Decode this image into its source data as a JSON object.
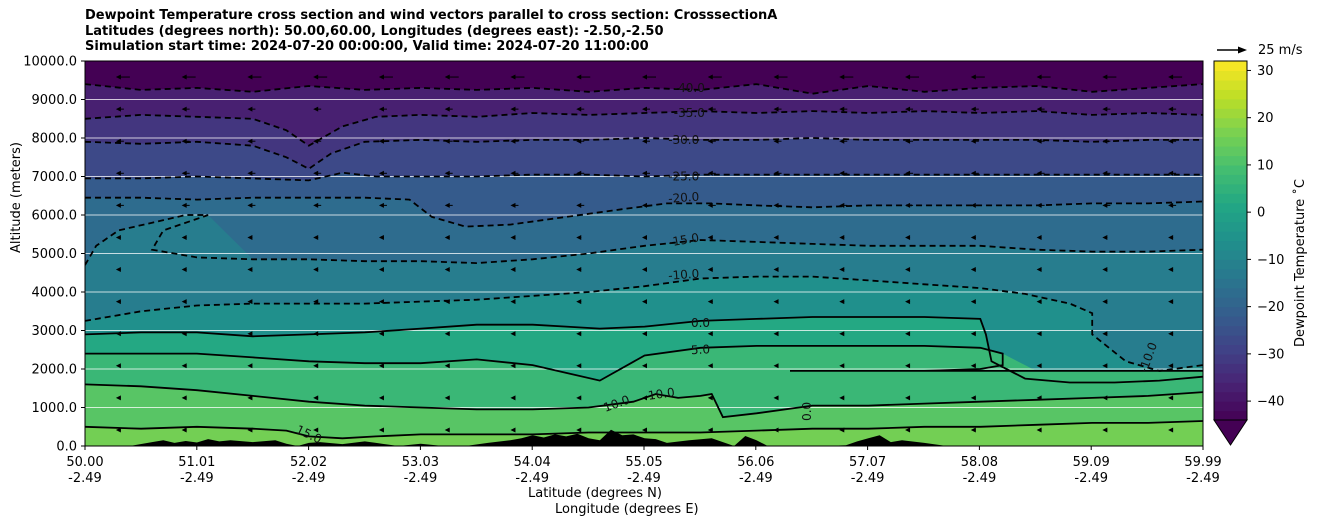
{
  "title": {
    "line1": "Dewpoint Temperature cross section and wind vectors parallel to cross section: CrosssectionA",
    "line2": "Latitudes (degrees north): 50.00,60.00, Longitudes (degrees east): -2.50,-2.50",
    "line3": "Simulation start time: 2024-07-20 00:00:00, Valid time: 2024-07-20 11:00:00"
  },
  "chart_data": {
    "type": "heatmap",
    "subtype": "filled-contour cross section with contour lines, wind vectors and terrain",
    "x_ticks": [
      {
        "lat": "50.00",
        "lon": "-2.49"
      },
      {
        "lat": "51.01",
        "lon": "-2.49"
      },
      {
        "lat": "52.02",
        "lon": "-2.49"
      },
      {
        "lat": "53.03",
        "lon": "-2.49"
      },
      {
        "lat": "54.04",
        "lon": "-2.49"
      },
      {
        "lat": "55.05",
        "lon": "-2.49"
      },
      {
        "lat": "56.06",
        "lon": "-2.49"
      },
      {
        "lat": "57.07",
        "lon": "-2.49"
      },
      {
        "lat": "58.08",
        "lon": "-2.49"
      },
      {
        "lat": "59.09",
        "lon": "-2.49"
      },
      {
        "lat": "59.99",
        "lon": "-2.49"
      }
    ],
    "xlim": [
      50.0,
      59.99
    ],
    "xlabel_line1": "Latitude (degrees N)",
    "xlabel_line2": "Longitude (degrees E)",
    "ylabel": "Altitude (meters)",
    "ylim": [
      0,
      10000
    ],
    "y_ticks": [
      "0.0",
      "1000.0",
      "2000.0",
      "3000.0",
      "4000.0",
      "5000.0",
      "6000.0",
      "7000.0",
      "8000.0",
      "9000.0",
      "10000.0"
    ],
    "grid": "horizontal lines at y ticks",
    "colorbar": {
      "label": "Dewpoint Temperature $^\\circ$C",
      "label_display": "Dewpoint Temperature ˚C",
      "ticks": [
        "30",
        "20",
        "10",
        "0",
        "−10",
        "−20",
        "−30",
        "−40"
      ],
      "range": [
        -44,
        32
      ],
      "extend": "min",
      "colormap": "viridis"
    },
    "quiver_key": {
      "label": "25 m/s",
      "value": 25
    },
    "contour_labels": [
      {
        "text": "-40.0",
        "value": -40,
        "altitude": 9300
      },
      {
        "text": "-35.0",
        "value": -35,
        "altitude": 8650
      },
      {
        "text": "-30.0",
        "value": -30,
        "altitude": 7950
      },
      {
        "text": "-25.0",
        "value": -25,
        "altitude": 7000
      },
      {
        "text": "-20.0",
        "value": -20,
        "altitude": 6450
      },
      {
        "text": "-15.0",
        "value": -15,
        "altitude": 5350
      },
      {
        "text": "-10.0",
        "value": -10,
        "altitude": 4450
      },
      {
        "text": "0.0",
        "value": 0,
        "altitude": 3200
      },
      {
        "text": "5.0",
        "value": 5,
        "altitude": 2500
      },
      {
        "text": "10.0",
        "value": 10,
        "altitude": 1350
      },
      {
        "text": "10.0",
        "value": 10,
        "altitude": 1100
      },
      {
        "text": "15.0",
        "value": 15,
        "altitude": 300
      },
      {
        "text": "0.0",
        "value": 0,
        "altitude": 900
      },
      {
        "text": "-10.0",
        "value": -10,
        "altitude": 2300
      }
    ],
    "contour_lines": [
      {
        "value": -40,
        "style": "dashed",
        "lat": [
          50.0,
          50.5,
          51.0,
          51.5,
          52.0,
          52.5,
          53.0,
          53.5,
          54.0,
          54.5,
          55.0,
          55.5,
          56.0,
          56.5,
          57.0,
          57.5,
          58.0,
          58.5,
          59.0,
          59.5,
          59.99
        ],
        "alt": [
          9400,
          9250,
          9300,
          9200,
          9350,
          9250,
          9300,
          9250,
          9300,
          9200,
          9300,
          9250,
          9400,
          9150,
          9350,
          9200,
          9300,
          9350,
          9200,
          9300,
          9400
        ]
      },
      {
        "value": -35,
        "style": "dashed",
        "lat": [
          50.0,
          50.5,
          51.0,
          51.5,
          51.8,
          52.0,
          52.3,
          52.6,
          53.0,
          53.5,
          54.0,
          54.5,
          55.0,
          55.5,
          56.0,
          56.5,
          57.0,
          57.5,
          58.0,
          58.5,
          59.0,
          59.5,
          59.99
        ],
        "alt": [
          8500,
          8600,
          8550,
          8500,
          8200,
          7800,
          8300,
          8550,
          8600,
          8550,
          8650,
          8600,
          8650,
          8700,
          8650,
          8700,
          8650,
          8700,
          8650,
          8700,
          8600,
          8650,
          8600
        ]
      },
      {
        "value": -30,
        "style": "dashed",
        "lat": [
          50.0,
          50.5,
          51.0,
          51.5,
          51.8,
          52.0,
          52.2,
          52.5,
          53.0,
          53.5,
          54.0,
          54.5,
          55.0,
          55.5,
          56.0,
          56.5,
          57.0,
          57.5,
          58.0,
          58.5,
          59.0,
          59.5,
          59.99
        ],
        "alt": [
          7900,
          7850,
          7900,
          7800,
          7500,
          7200,
          7600,
          7900,
          7950,
          7900,
          7950,
          7950,
          8000,
          7950,
          7950,
          8000,
          7950,
          7950,
          7950,
          7950,
          7900,
          7950,
          7950
        ]
      },
      {
        "value": -25,
        "style": "dashed",
        "lat": [
          50.0,
          50.5,
          51.0,
          51.5,
          52.0,
          52.3,
          52.6,
          53.0,
          53.5,
          54.0,
          54.5,
          55.0,
          55.5,
          56.0,
          56.5,
          57.0,
          57.5,
          58.0,
          58.5,
          59.0,
          59.5,
          59.99
        ],
        "alt": [
          6950,
          6950,
          7000,
          6950,
          6900,
          7100,
          7000,
          7000,
          7000,
          7050,
          7050,
          7000,
          7050,
          7050,
          7050,
          7050,
          7050,
          7050,
          7050,
          7050,
          7050,
          7050
        ]
      },
      {
        "value": -20,
        "style": "dashed",
        "lat": [
          50.0,
          50.5,
          51.0,
          51.5,
          52.0,
          52.5,
          52.9,
          53.1,
          53.4,
          53.8,
          54.3,
          54.8,
          55.2,
          55.6,
          56.0,
          56.5,
          57.0,
          57.5,
          58.0,
          58.5,
          59.0,
          59.5,
          59.99
        ],
        "alt": [
          6450,
          6450,
          6400,
          6450,
          6450,
          6450,
          6400,
          5950,
          5700,
          5750,
          5950,
          6150,
          6300,
          6300,
          6250,
          6200,
          6250,
          6250,
          6250,
          6250,
          6300,
          6300,
          6350
        ]
      },
      {
        "value": -15,
        "style": "dashed",
        "lat": [
          50.0,
          50.1,
          50.3,
          50.6,
          50.9,
          51.1,
          51.0,
          50.7,
          50.6,
          51.0,
          51.5,
          52.0,
          52.5,
          53.0,
          53.5,
          54.0,
          54.5,
          55.0,
          55.5,
          56.0,
          56.5,
          57.0,
          57.5,
          58.0,
          58.5,
          59.0,
          59.5,
          59.99
        ],
        "alt": [
          4700,
          5200,
          5600,
          5800,
          6000,
          6000,
          5900,
          5600,
          5100,
          4900,
          4850,
          4850,
          4800,
          4800,
          4750,
          4850,
          5000,
          5200,
          5350,
          5300,
          5250,
          5200,
          5200,
          5200,
          5100,
          5050,
          5050,
          5100
        ]
      },
      {
        "value": -10,
        "style": "dashed",
        "lat": [
          50.0,
          50.5,
          51.0,
          51.5,
          52.0,
          52.5,
          53.0,
          53.5,
          54.0,
          54.5,
          55.0,
          55.5,
          56.0,
          56.5,
          57.0,
          57.5,
          58.0,
          58.4,
          58.8,
          59.0,
          59.0,
          59.3,
          59.6,
          59.99
        ],
        "alt": [
          3250,
          3500,
          3650,
          3700,
          3700,
          3700,
          3750,
          3800,
          3900,
          4000,
          4150,
          4350,
          4400,
          4400,
          4300,
          4200,
          4100,
          3950,
          3700,
          3450,
          2900,
          2200,
          1950,
          2100
        ]
      },
      {
        "value": 0,
        "style": "solid",
        "lat": [
          50.0,
          50.5,
          51.0,
          51.5,
          52.0,
          52.5,
          53.0,
          53.5,
          54.0,
          54.3,
          54.6,
          55.0,
          55.5,
          56.0,
          56.5,
          57.0,
          57.5,
          58.0,
          58.05,
          58.1,
          58.4,
          58.8,
          59.2,
          59.6,
          59.99
        ],
        "alt": [
          2900,
          2950,
          2950,
          2850,
          2900,
          2950,
          3050,
          3150,
          3150,
          3100,
          3050,
          3100,
          3250,
          3300,
          3350,
          3350,
          3350,
          3300,
          2900,
          2200,
          1750,
          1650,
          1650,
          1700,
          1800
        ]
      },
      {
        "value": 5,
        "style": "solid",
        "lat": [
          50.0,
          50.5,
          51.0,
          51.5,
          52.0,
          52.5,
          53.0,
          53.5,
          54.0,
          54.3,
          54.6,
          55.0,
          55.5,
          56.0,
          56.5,
          57.0,
          57.5,
          58.0,
          58.2,
          58.2,
          58.0,
          57.5,
          57.0,
          56.5,
          56.3,
          56.3,
          56.6,
          57.0,
          57.5,
          58.0,
          58.5,
          59.0,
          59.5,
          59.99
        ],
        "alt": [
          2400,
          2400,
          2400,
          2300,
          2200,
          2150,
          2150,
          2250,
          2100,
          1900,
          1700,
          2350,
          2550,
          2600,
          2600,
          2600,
          2600,
          2550,
          2400,
          2100,
          2000,
          1950,
          1950,
          1950,
          1950,
          1950,
          1950,
          1950,
          1950,
          1950,
          1950,
          1950,
          1950,
          1950
        ]
      },
      {
        "value": 10,
        "style": "solid",
        "lat": [
          50.0,
          50.5,
          51.0,
          51.5,
          52.0,
          52.5,
          53.0,
          53.5,
          54.0,
          54.5,
          54.9,
          55.1,
          55.3,
          55.5,
          55.6,
          55.7,
          56.0,
          56.5,
          57.0,
          57.5,
          58.0,
          58.5,
          59.0,
          59.5,
          59.99
        ],
        "alt": [
          1600,
          1550,
          1450,
          1300,
          1150,
          1050,
          1000,
          950,
          950,
          1000,
          1150,
          1350,
          1250,
          1300,
          1350,
          750,
          850,
          1050,
          1050,
          1100,
          1150,
          1200,
          1250,
          1300,
          1400
        ]
      },
      {
        "value": 15,
        "style": "solid",
        "lat": [
          50.0,
          50.5,
          51.0,
          51.5,
          51.8,
          52.0,
          52.3,
          52.6,
          53.0,
          53.5,
          54.0,
          54.5,
          55.0,
          55.5,
          56.0,
          56.5,
          57.0,
          57.5,
          58.0,
          58.5,
          59.0,
          59.5,
          59.99
        ],
        "alt": [
          500,
          450,
          500,
          450,
          400,
          250,
          200,
          250,
          300,
          300,
          300,
          350,
          350,
          350,
          400,
          450,
          450,
          500,
          500,
          550,
          600,
          600,
          650
        ]
      }
    ],
    "terrain": {
      "lat": [
        50.0,
        50.4,
        50.6,
        50.7,
        50.8,
        50.9,
        51.0,
        51.1,
        51.2,
        51.3,
        51.5,
        51.7,
        51.8,
        51.9,
        52.0,
        52.1,
        52.3,
        52.5,
        52.6,
        52.8,
        53.0,
        53.2,
        53.4,
        53.6,
        53.8,
        53.9,
        54.0,
        54.1,
        54.2,
        54.3,
        54.4,
        54.5,
        54.6,
        54.7,
        54.8,
        54.9,
        55.0,
        55.1,
        55.2,
        55.4,
        55.6,
        55.8,
        55.9,
        56.0,
        56.1,
        56.2,
        56.4,
        56.6,
        56.8,
        56.9,
        57.0,
        57.1,
        57.2,
        57.3,
        57.5,
        57.7,
        58.0,
        59.99
      ],
      "alt": [
        0,
        0,
        100,
        150,
        80,
        130,
        90,
        180,
        120,
        150,
        100,
        150,
        60,
        0,
        80,
        100,
        50,
        120,
        80,
        0,
        60,
        0,
        0,
        80,
        150,
        200,
        280,
        220,
        300,
        250,
        320,
        200,
        150,
        420,
        280,
        300,
        200,
        180,
        80,
        150,
        200,
        0,
        260,
        150,
        0,
        0,
        0,
        0,
        20,
        120,
        200,
        280,
        100,
        150,
        80,
        0,
        0,
        0
      ]
    },
    "wind_vectors": "small arrows on a regular grid, mostly weak, stronger left-pointing arrows above 9000 m"
  }
}
